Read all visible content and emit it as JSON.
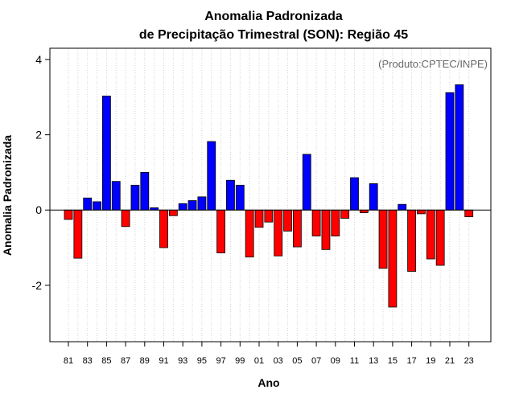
{
  "chart_data": {
    "type": "bar",
    "title": "Anomalia Padronizada",
    "subtitle": "de Precipitação Trimestral (SON): Região 45",
    "xlabel": "Ano",
    "ylabel": "Anomalia Padronizada",
    "credit": "(Produto:CPTEC/INPE)",
    "ylim": [
      -3.5,
      4.3
    ],
    "yticks": [
      -2,
      0,
      2,
      4
    ],
    "ytick_labels": [
      "-2",
      "0",
      "2",
      "4"
    ],
    "xtick_labels": [
      "81",
      "83",
      "85",
      "87",
      "89",
      "91",
      "93",
      "95",
      "97",
      "99",
      "01",
      "03",
      "05",
      "07",
      "09",
      "11",
      "13",
      "15",
      "17",
      "19",
      "21",
      "23"
    ],
    "grid": "vertical dotted",
    "colors": {
      "positive": "#0000ff",
      "negative": "#ff0000",
      "outline": "#000000",
      "grid": "#d3d3d3"
    },
    "categories": [
      "81",
      "82",
      "83",
      "84",
      "85",
      "86",
      "87",
      "88",
      "89",
      "90",
      "91",
      "92",
      "93",
      "94",
      "95",
      "96",
      "97",
      "98",
      "99",
      "00",
      "01",
      "02",
      "03",
      "04",
      "05",
      "06",
      "07",
      "08",
      "09",
      "10",
      "11",
      "12",
      "13",
      "14",
      "15",
      "16",
      "17",
      "18",
      "19",
      "20",
      "21",
      "22",
      "23"
    ],
    "values": [
      -0.25,
      -1.28,
      0.32,
      0.22,
      3.03,
      0.76,
      -0.44,
      0.66,
      1.0,
      0.06,
      -1.0,
      -0.15,
      0.17,
      0.25,
      0.35,
      1.82,
      -1.14,
      0.79,
      0.66,
      -1.25,
      -0.46,
      -0.32,
      -1.22,
      -0.56,
      -0.98,
      1.48,
      -0.69,
      -1.05,
      -0.69,
      -0.22,
      0.86,
      -0.07,
      0.7,
      -1.55,
      -2.58,
      0.15,
      -1.63,
      -0.1,
      -1.3,
      -1.47,
      3.12,
      3.33,
      -0.18
    ]
  }
}
